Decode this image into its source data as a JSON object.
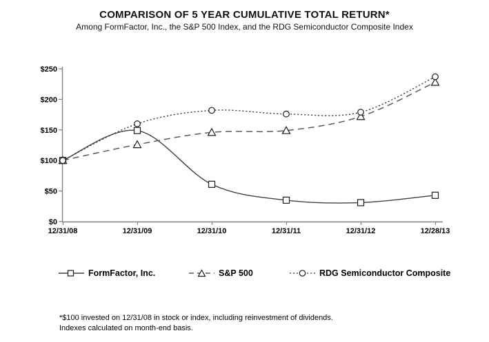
{
  "subtitle": "Among FormFactor, Inc., the S&P 500 Index, and the RDG Semiconductor Composite Index",
  "footnote": {
    "line1": "*$100 invested on 12/31/08 in stock or index, including reinvestment of dividends.",
    "line2": "Indexes calculated on month-end basis."
  },
  "chart_data": {
    "type": "line",
    "title": "COMPARISON OF 5 YEAR CUMULATIVE TOTAL RETURN*",
    "categories": [
      "12/31/08",
      "12/31/09",
      "12/31/10",
      "12/31/11",
      "12/31/12",
      "12/28/13"
    ],
    "series": [
      {
        "name": "FormFactor, Inc.",
        "marker": "square",
        "line_style": "solid",
        "color": "#404040",
        "values": [
          100,
          149,
          61,
          35,
          31,
          43
        ]
      },
      {
        "name": "S&P 500",
        "marker": "triangle",
        "line_style": "dashed",
        "color": "#595959",
        "values": [
          100,
          126,
          146,
          149,
          172,
          228
        ]
      },
      {
        "name": "RDG Semiconductor Composite",
        "marker": "circle",
        "line_style": "dotted",
        "color": "#333333",
        "values": [
          100,
          160,
          182,
          176,
          179,
          237
        ]
      }
    ],
    "xlabel": "",
    "ylabel": "",
    "ylim": [
      0,
      250
    ],
    "ytick_step": 50,
    "ytick_labels": [
      "$0",
      "$50",
      "$100",
      "$150",
      "$200",
      "$250"
    ],
    "grid": false,
    "legend_position": "bottom",
    "axis_color": "#808080",
    "marker_fill": "#ffffff",
    "marker_stroke": "#1a1a1a"
  }
}
